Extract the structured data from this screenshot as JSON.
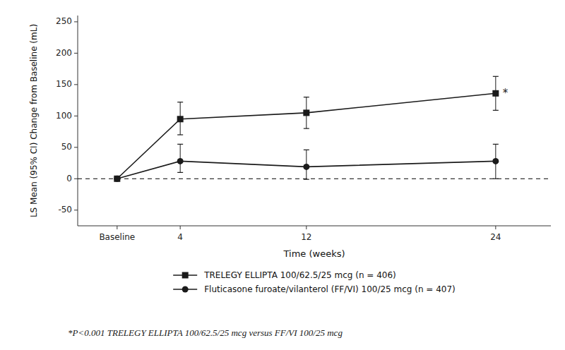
{
  "chart_data": {
    "type": "line",
    "xlabel": "Time (weeks)",
    "ylabel": "LS Mean (95% CI) Change from Baseline (mL)",
    "x": [
      0,
      4,
      12,
      24
    ],
    "xlim": [
      -2.5,
      27.5
    ],
    "xticks": [
      {
        "value": 0,
        "label": "Baseline"
      },
      4,
      12,
      24
    ],
    "ylim": [
      -75,
      260
    ],
    "yticks": [
      -50,
      0,
      50,
      100,
      150,
      200,
      250
    ],
    "grid": false,
    "legend": "bottom",
    "series": [
      {
        "name": "TRELEGY ELLIPTA 100/62.5/25 mcg (n = 406)",
        "color": "#1a1a1a",
        "marker": "square",
        "line_style": "solid",
        "values": [
          0,
          95,
          105,
          136
        ],
        "error_lower": [
          0,
          25,
          25,
          27
        ],
        "error_upper": [
          0,
          27,
          25,
          27
        ]
      },
      {
        "name": "Fluticasone furoate/vilanterol (FF/VI) 100/25 mcg (n = 407)",
        "color": "#1a1a1a",
        "marker": "circle",
        "line_style": "solid",
        "values": [
          0,
          28,
          19,
          28
        ],
        "error_lower": [
          0,
          18,
          20,
          28
        ],
        "error_upper": [
          0,
          27,
          27,
          27
        ]
      }
    ],
    "reference_line": {
      "y": 0,
      "line_style": "dashed"
    },
    "annotations": [
      {
        "text": "*",
        "x": 24,
        "y": 136
      }
    ],
    "footnote": "*P<0.001 TRELEGY ELLIPTA 100/62.5/25 mcg versus FF/VI 100/25 mcg"
  }
}
